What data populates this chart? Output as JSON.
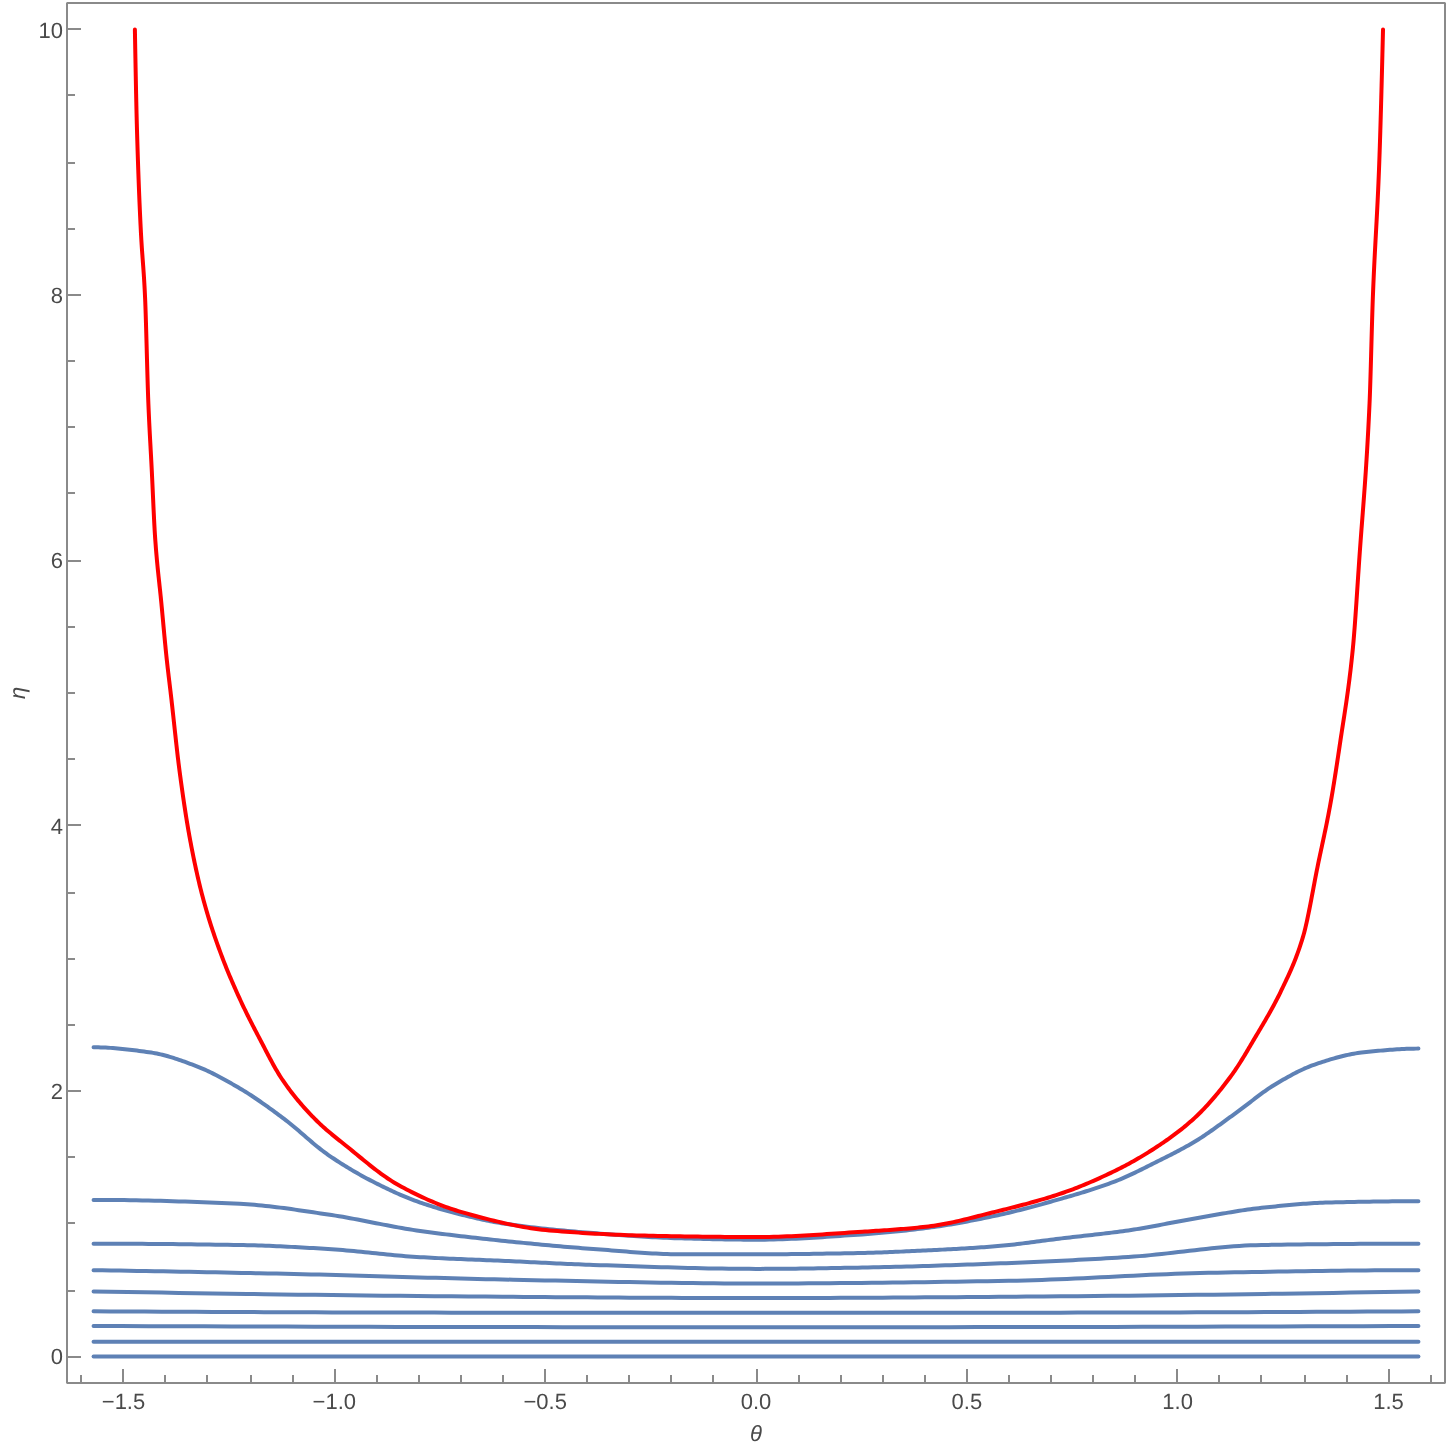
{
  "chart_data": {
    "type": "line",
    "xlabel": "θ",
    "ylabel": "η",
    "xlim": [
      -1.634,
      1.634
    ],
    "ylim": [
      -0.2,
      10.2
    ],
    "grid": false,
    "xticks": [
      {
        "value": -1.6,
        "label": null
      },
      {
        "value": -1.5,
        "label": "−1.5"
      },
      {
        "value": -1.4,
        "label": null
      },
      {
        "value": -1.3,
        "label": null
      },
      {
        "value": -1.2,
        "label": null
      },
      {
        "value": -1.1,
        "label": null
      },
      {
        "value": -1.0,
        "label": "−1.0"
      },
      {
        "value": -0.9,
        "label": null
      },
      {
        "value": -0.8,
        "label": null
      },
      {
        "value": -0.7,
        "label": null
      },
      {
        "value": -0.6,
        "label": null
      },
      {
        "value": -0.5,
        "label": "−0.5"
      },
      {
        "value": -0.4,
        "label": null
      },
      {
        "value": -0.3,
        "label": null
      },
      {
        "value": -0.2,
        "label": null
      },
      {
        "value": -0.1,
        "label": null
      },
      {
        "value": 0,
        "label": "0.0"
      },
      {
        "value": 0.1,
        "label": null
      },
      {
        "value": 0.2,
        "label": null
      },
      {
        "value": 0.3,
        "label": null
      },
      {
        "value": 0.4,
        "label": null
      },
      0.5,
      {
        "value": 0.6,
        "label": null
      },
      {
        "value": 0.7,
        "label": null
      },
      {
        "value": 0.8,
        "label": null
      },
      {
        "value": 0.9,
        "label": null
      },
      {
        "value": 1.0,
        "label": "1.0"
      },
      {
        "value": 1.1,
        "label": null
      },
      {
        "value": 1.2,
        "label": null
      },
      {
        "value": 1.3,
        "label": null
      },
      {
        "value": 1.4,
        "label": null
      },
      1.5,
      {
        "value": 1.6,
        "label": null
      }
    ],
    "yticks": [
      0,
      {
        "value": 0.5,
        "label": null
      },
      {
        "value": 1,
        "label": null
      },
      {
        "value": 1.5,
        "label": null
      },
      2,
      {
        "value": 2.5,
        "label": null
      },
      {
        "value": 3,
        "label": null
      },
      {
        "value": 3.5,
        "label": null
      },
      4,
      {
        "value": 4.5,
        "label": null
      },
      {
        "value": 5,
        "label": null
      },
      {
        "value": 5.5,
        "label": null
      },
      6,
      {
        "value": 6.5,
        "label": null
      },
      {
        "value": 7,
        "label": null
      },
      {
        "value": 7.5,
        "label": null
      },
      8,
      {
        "value": 8.5,
        "label": null
      },
      {
        "value": 9,
        "label": null
      },
      {
        "value": 9.5,
        "label": null
      },
      10
    ],
    "series": [
      {
        "color": "#5e81b5",
        "x": [
          -1.571,
          -1.434,
          -1.329,
          -1.224,
          -1.119,
          -1.015,
          -0.91,
          -0.805,
          -0.7,
          -0.595,
          -0.386,
          -0.176,
          0,
          0.252,
          0.409,
          0.567,
          0.725,
          0.852,
          0.946,
          1.041,
          1.136,
          1.231,
          1.325,
          1.436,
          1.571
        ],
        "values": [
          2.33,
          2.29,
          2.19,
          2.02,
          1.79,
          1.52,
          1.32,
          1.17,
          1.07,
          1.0,
          0.93,
          0.89,
          0.88,
          0.92,
          0.97,
          1.06,
          1.19,
          1.32,
          1.46,
          1.62,
          1.83,
          2.05,
          2.2,
          2.29,
          2.32
        ]
      },
      {
        "color": "#5e81b5",
        "x": [
          -1.571,
          -1.224,
          -1.015,
          -0.805,
          -0.595,
          -0.386,
          -0.176,
          0,
          0.252,
          0.409,
          0.567,
          0.725,
          0.883,
          1.041,
          1.199,
          1.357,
          1.571
        ],
        "values": [
          1.18,
          1.15,
          1.07,
          0.95,
          0.87,
          0.81,
          0.77,
          0.77,
          0.78,
          0.8,
          0.83,
          0.89,
          0.95,
          1.04,
          1.12,
          1.16,
          1.17
        ]
      },
      {
        "color": "#5e81b5",
        "x": [
          -1.571,
          -1.224,
          -1.015,
          -0.805,
          -0.595,
          -0.386,
          0,
          0.252,
          0.567,
          0.883,
          1.199,
          1.571
        ],
        "values": [
          0.85,
          0.84,
          0.81,
          0.75,
          0.72,
          0.69,
          0.66,
          0.67,
          0.7,
          0.75,
          0.84,
          0.85
        ]
      },
      {
        "color": "#5e81b5",
        "x": [
          -1.571,
          -1.075,
          -0.601,
          0,
          0.599,
          1.073,
          1.571
        ],
        "values": [
          0.65,
          0.62,
          0.58,
          0.55,
          0.57,
          0.63,
          0.65
        ]
      },
      {
        "color": "#5e81b5",
        "x": [
          -1.571,
          -0.601,
          0,
          0.601,
          1.571
        ],
        "values": [
          0.49,
          0.45,
          0.44,
          0.45,
          0.49
        ]
      },
      {
        "color": "#5e81b5",
        "x": [
          -1.571,
          -0.601,
          0,
          0.601,
          1.571
        ],
        "values": [
          0.34,
          0.33,
          0.33,
          0.33,
          0.34
        ]
      },
      {
        "color": "#5e81b5",
        "x": [
          -1.571,
          0,
          1.571
        ],
        "values": [
          0.23,
          0.22,
          0.23
        ]
      },
      {
        "color": "#5e81b5",
        "x": [
          -1.571,
          0,
          1.571
        ],
        "values": [
          0.11,
          0.11,
          0.11
        ]
      },
      {
        "color": "#5e81b5",
        "x": [
          -1.571,
          0,
          1.571
        ],
        "values": [
          0,
          0,
          0
        ]
      },
      {
        "color": "#ff0000",
        "x": [
          -1.473,
          -1.468,
          -1.459,
          -1.449,
          -1.441,
          -1.433,
          -1.425,
          -1.41,
          -1.398,
          -1.387,
          -1.367,
          -1.343,
          -1.312,
          -1.272,
          -1.225,
          -1.178,
          -1.122,
          -1.043,
          -0.973,
          -0.847,
          -0.7,
          -0.49,
          -0.254,
          0,
          0.252,
          0.409,
          0.567,
          0.725,
          0.852,
          0.946,
          1.041,
          1.128,
          1.183,
          1.246,
          1.297,
          1.333,
          1.362,
          1.385,
          1.415,
          1.431,
          1.455,
          1.463,
          1.478,
          1.487
        ],
        "values": [
          10.0,
          9.24,
          8.49,
          7.99,
          7.18,
          6.68,
          6.17,
          5.67,
          5.27,
          4.97,
          4.41,
          3.91,
          3.46,
          3.06,
          2.7,
          2.4,
          2.08,
          1.78,
          1.59,
          1.29,
          1.09,
          0.95,
          0.91,
          0.9,
          0.94,
          0.98,
          1.09,
          1.23,
          1.4,
          1.57,
          1.8,
          2.12,
          2.4,
          2.76,
          3.16,
          3.71,
          4.16,
          4.62,
          5.32,
          6.02,
          7.18,
          7.99,
          8.99,
          10.0
        ]
      }
    ]
  }
}
